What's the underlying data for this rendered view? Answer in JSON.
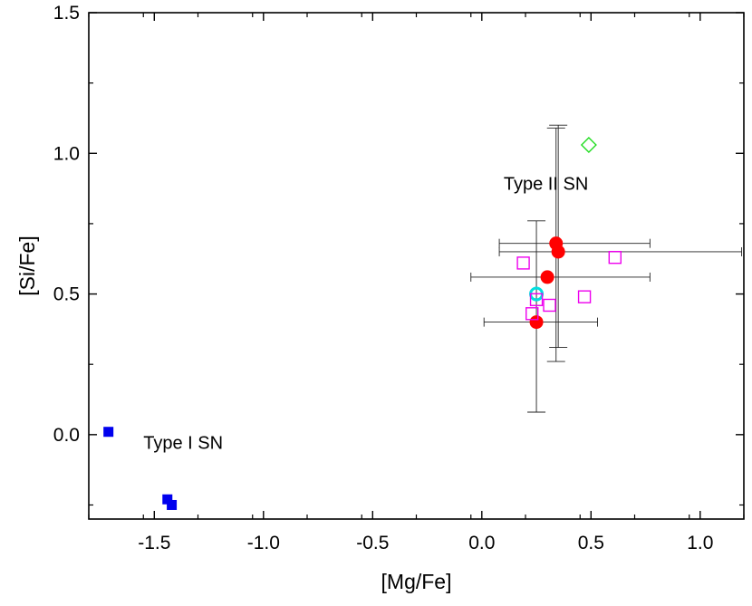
{
  "chart_data": {
    "type": "scatter",
    "title": "",
    "xlabel": "[Mg/Fe]",
    "ylabel": "[Si/Fe]",
    "xlim": [
      -1.8,
      1.2
    ],
    "ylim": [
      -0.3,
      1.5
    ],
    "grid": false,
    "xticks": [
      -1.5,
      -1.0,
      -0.5,
      0.0,
      0.5,
      1.0
    ],
    "xtick_labels": [
      "-1.5",
      "-1.0",
      "-0.5",
      "0.0",
      "0.5",
      "1.0"
    ],
    "yticks": [
      0.0,
      0.5,
      1.0,
      1.5
    ],
    "ytick_labels": [
      "0.0",
      "0.5",
      "1.0",
      "1.5"
    ],
    "annotations": [
      {
        "text": "Type II SN",
        "x": 0.1,
        "y": 0.87
      },
      {
        "text": "Type I SN",
        "x": -1.55,
        "y": -0.05
      }
    ],
    "series": [
      {
        "name": "Type I SN models",
        "marker": "filled-square",
        "color": "#0000ee",
        "points": [
          {
            "x": -1.71,
            "y": 0.01
          },
          {
            "x": -1.44,
            "y": -0.23
          },
          {
            "x": -1.42,
            "y": -0.25
          }
        ]
      },
      {
        "name": "red filled circles",
        "marker": "filled-circle",
        "color": "#ff0000",
        "points": [
          {
            "x": 0.34,
            "y": 0.68,
            "xerr": [
              0.26,
              0.43
            ],
            "yerr": [
              0.42,
              0.41
            ]
          },
          {
            "x": 0.35,
            "y": 0.65,
            "xerr": [
              0.27,
              0.84
            ],
            "yerr": [
              0.34,
              0.45
            ]
          },
          {
            "x": 0.3,
            "y": 0.56,
            "xerr": [
              0.35,
              0.47
            ],
            "yerr": null
          },
          {
            "x": 0.25,
            "y": 0.4,
            "xerr": [
              0.24,
              0.28
            ],
            "yerr": null
          }
        ]
      },
      {
        "name": "cyan open circle",
        "marker": "open-circle",
        "color": "#00e0e0",
        "points": [
          {
            "x": 0.25,
            "y": 0.5,
            "xerr": null,
            "yerr": [
              0.42,
              0.26
            ]
          }
        ]
      },
      {
        "name": "magenta open squares",
        "marker": "open-square",
        "color": "#ee00ee",
        "points": [
          {
            "x": 0.19,
            "y": 0.61
          },
          {
            "x": 0.61,
            "y": 0.63
          },
          {
            "x": 0.47,
            "y": 0.49
          },
          {
            "x": 0.31,
            "y": 0.46
          },
          {
            "x": 0.23,
            "y": 0.43
          },
          {
            "x": 0.25,
            "y": 0.48
          }
        ]
      },
      {
        "name": "green open diamond",
        "marker": "open-diamond",
        "color": "#22dd22",
        "points": [
          {
            "x": 0.49,
            "y": 1.03
          }
        ]
      }
    ]
  }
}
